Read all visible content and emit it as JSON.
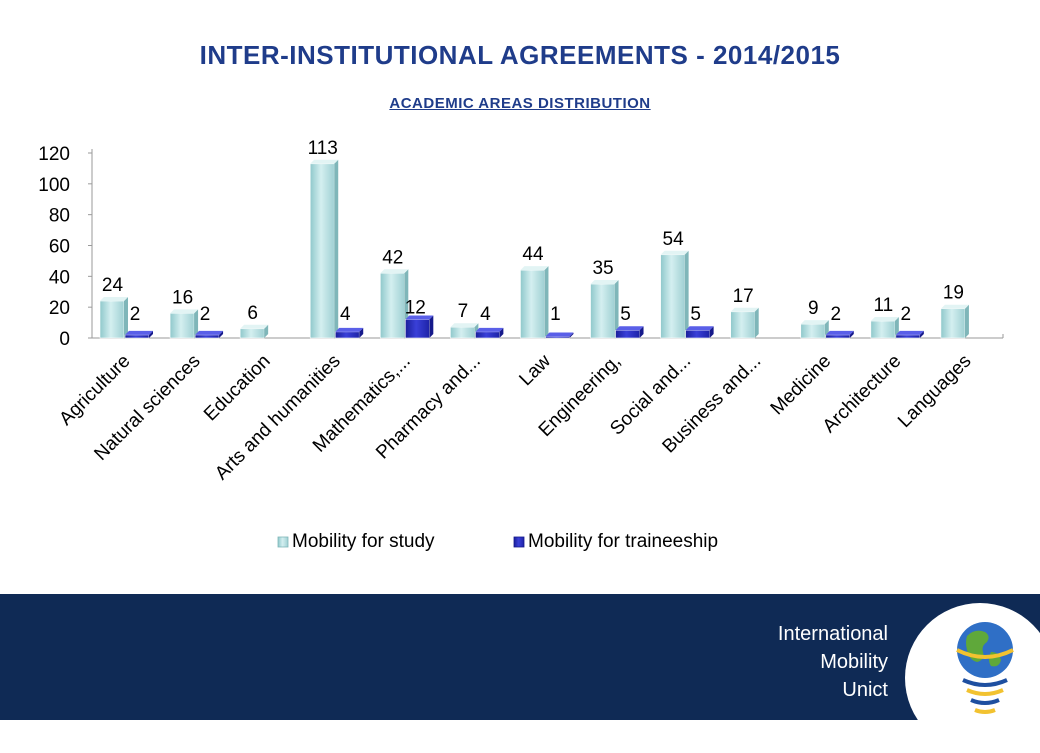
{
  "header": {
    "title": "INTER-INSTITUTIONAL AGREEMENTS - 2014/2015",
    "subtitle": "ACADEMIC AREAS DISTRIBUTION"
  },
  "footer": {
    "unit_lines": [
      "International",
      "Mobility",
      "Unict"
    ],
    "logo_icon": "globe-spiral-logo-icon"
  },
  "chart_data": {
    "type": "bar",
    "title": "INTER-INSTITUTIONAL AGREEMENTS - 2014/2015",
    "subtitle": "ACADEMIC AREAS DISTRIBUTION",
    "xlabel": "",
    "ylabel": "",
    "ylim": [
      0,
      120
    ],
    "yticks": [
      0,
      20,
      40,
      60,
      80,
      100,
      120
    ],
    "grid": false,
    "legend": "bottom",
    "categories": [
      "Agriculture",
      "Natural sciences",
      "Education",
      "Arts and humanities",
      "Mathematics,...",
      "Pharmacy and...",
      "Law",
      "Engineering,",
      "Social and...",
      "Business and...",
      "Medicine",
      "Architecture",
      "Languages"
    ],
    "series": [
      {
        "name": "Mobility for study",
        "color": "#b4dfe0",
        "values": [
          24,
          16,
          6,
          113,
          42,
          7,
          44,
          35,
          54,
          17,
          9,
          11,
          19
        ]
      },
      {
        "name": "Mobility for traineeship",
        "color": "#2a2fbf",
        "values": [
          2,
          2,
          null,
          4,
          12,
          4,
          1,
          5,
          5,
          null,
          2,
          2,
          null
        ]
      }
    ]
  }
}
